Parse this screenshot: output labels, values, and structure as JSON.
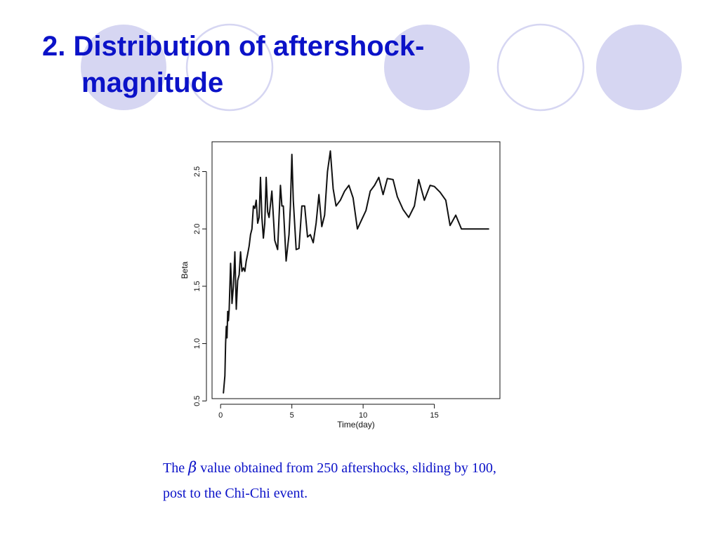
{
  "slide": {
    "title_line1": "2. Distribution of aftershock-",
    "title_line2": "magnitude",
    "caption_pre": "The",
    "caption_symbol": "β",
    "caption_post": "value obtained from 250 aftershocks, sliding by 100,",
    "caption_line2": "post to the Chi-Chi event.",
    "colors": {
      "title": "#0b12c8",
      "caption": "#0b12c8",
      "circle_fill": "#d6d6f2",
      "circle_stroke": "#d6d6f2",
      "line": "#111111"
    }
  },
  "chart_data": {
    "type": "line",
    "title": "",
    "xlabel": "Time(day)",
    "ylabel": "Beta",
    "xlim": [
      -0.6,
      19.6
    ],
    "ylim": [
      0.52,
      2.76
    ],
    "xticks": [
      0,
      5,
      10,
      15
    ],
    "yticks": [
      0.5,
      1.0,
      1.5,
      2.0,
      2.5
    ],
    "xtick_labels": [
      "0",
      "5",
      "10",
      "15"
    ],
    "ytick_labels": [
      "0.5",
      "1.0",
      "1.5",
      "2.0",
      "2.5"
    ],
    "grid": false,
    "series": [
      {
        "x": [
          0.2,
          0.3,
          0.35,
          0.4,
          0.45,
          0.5,
          0.55,
          0.6,
          0.65,
          0.7,
          0.75,
          0.8,
          0.9,
          1.0,
          1.1,
          1.2,
          1.3,
          1.4,
          1.5,
          1.6,
          1.7,
          1.8,
          1.9,
          2.0,
          2.1,
          2.2,
          2.3,
          2.4,
          2.5,
          2.6,
          2.7,
          2.8,
          2.9,
          3.0,
          3.1,
          3.2,
          3.3,
          3.4,
          3.6,
          3.8,
          4.0,
          4.2,
          4.3,
          4.4,
          4.6,
          4.8,
          4.9,
          5.0,
          5.1,
          5.3,
          5.5,
          5.7,
          5.9,
          6.1,
          6.3,
          6.5,
          6.7,
          6.9,
          7.1,
          7.3,
          7.5,
          7.7,
          7.9,
          8.1,
          8.4,
          8.7,
          9.0,
          9.3,
          9.6,
          9.9,
          10.2,
          10.5,
          10.8,
          11.1,
          11.4,
          11.7,
          12.1,
          12.4,
          12.8,
          13.2,
          13.6,
          13.9,
          14.3,
          14.7,
          15.0,
          15.4,
          15.8,
          16.1,
          16.5,
          16.9,
          17.3,
          17.7,
          18.1,
          18.4,
          18.8
        ],
        "y": [
          0.57,
          0.72,
          1.0,
          1.15,
          1.05,
          1.28,
          1.2,
          1.3,
          1.5,
          1.7,
          1.55,
          1.35,
          1.5,
          1.8,
          1.3,
          1.55,
          1.6,
          1.8,
          1.63,
          1.66,
          1.63,
          1.72,
          1.78,
          1.85,
          1.95,
          2.0,
          2.2,
          2.18,
          2.25,
          2.05,
          2.1,
          2.45,
          2.1,
          1.92,
          2.05,
          2.45,
          2.15,
          2.1,
          2.33,
          1.9,
          1.82,
          2.38,
          2.2,
          2.2,
          1.72,
          1.95,
          2.2,
          2.65,
          2.25,
          1.82,
          1.83,
          2.2,
          2.2,
          1.93,
          1.95,
          1.88,
          2.05,
          2.3,
          2.02,
          2.12,
          2.5,
          2.68,
          2.35,
          2.2,
          2.25,
          2.33,
          2.38,
          2.27,
          2.0,
          2.08,
          2.16,
          2.33,
          2.38,
          2.45,
          2.3,
          2.44,
          2.43,
          2.28,
          2.17,
          2.1,
          2.2,
          2.43,
          2.25,
          2.38,
          2.37,
          2.32,
          2.25,
          2.03,
          2.12,
          2.0,
          2.0,
          2.0,
          2.0,
          2.0,
          2.0
        ]
      }
    ]
  }
}
